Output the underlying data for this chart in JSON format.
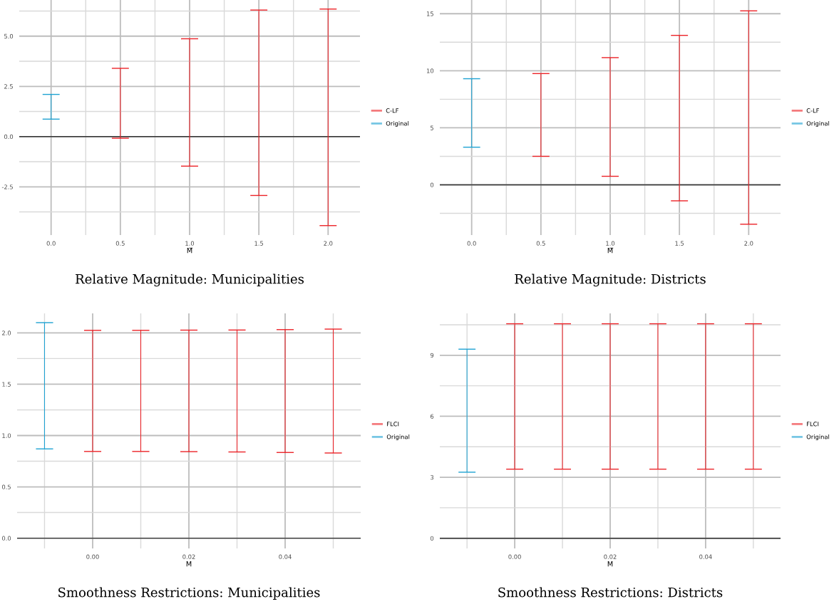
{
  "chart_data": [
    {
      "type": "bar",
      "title": "Relative Magnitude: Municipalities",
      "xlabel": "M̅",
      "xlim": [
        -0.23,
        2.23
      ],
      "xticks": [
        {
          "value": 0,
          "label": "0.0"
        },
        0.5,
        {
          "value": 1,
          "label": "1.0"
        },
        1.5,
        {
          "value": 2,
          "label": "2.0"
        }
      ],
      "ylim": [
        -4.9,
        6.8
      ],
      "yticks": [
        {
          "value": -2.5,
          "label": "-2.5"
        },
        {
          "value": 0,
          "label": "0.0"
        },
        2.5,
        {
          "value": 5,
          "label": "5.0"
        }
      ],
      "grid": true,
      "legend": "right",
      "ref_lines": [
        {
          "axis": "y",
          "value": 0,
          "color": "#333333"
        }
      ],
      "series": [
        {
          "name": "C-LF",
          "color": "#ec2227",
          "x": [
            0.5,
            1.0,
            1.5,
            2.0
          ],
          "base": [
            -0.08,
            -1.47,
            -2.93,
            -4.43
          ],
          "values": [
            3.48,
            6.34,
            9.23,
            10.78
          ]
        },
        {
          "name": "Original",
          "color": "#1ea2d2",
          "x": [
            0.0
          ],
          "base": [
            0.87
          ],
          "values": [
            1.23
          ]
        }
      ]
    },
    {
      "type": "bar",
      "title": "Relative Magnitude: Districts",
      "xlabel": "M̅",
      "xlim": [
        -0.23,
        2.23
      ],
      "xticks": [
        {
          "value": 0,
          "label": "0.0"
        },
        0.5,
        {
          "value": 1,
          "label": "1.0"
        },
        1.5,
        {
          "value": 2,
          "label": "2.0"
        }
      ],
      "ylim": [
        -4.4,
        16.2
      ],
      "yticks": [
        0,
        5,
        10,
        15
      ],
      "grid": true,
      "legend": "right",
      "ref_lines": [
        {
          "axis": "y",
          "value": 0,
          "color": "#333333"
        }
      ],
      "series": [
        {
          "name": "C-LF",
          "color": "#ec2227",
          "x": [
            0.5,
            1.0,
            1.5,
            2.0
          ],
          "base": [
            2.5,
            0.75,
            -1.4,
            -3.45
          ],
          "values": [
            7.25,
            10.4,
            14.5,
            18.7
          ]
        },
        {
          "name": "Original",
          "color": "#1ea2d2",
          "x": [
            0.0
          ],
          "base": [
            3.3
          ],
          "values": [
            6.0
          ]
        }
      ]
    },
    {
      "type": "bar",
      "title": "Smoothness Restrictions: Municipalities",
      "xlabel": "M",
      "xlim": [
        -0.0157,
        0.0557
      ],
      "xticks": [
        {
          "value": 0,
          "label": "0.00"
        },
        0.02,
        0.04
      ],
      "ylim": [
        -0.1,
        2.19
      ],
      "yticks": [
        {
          "value": 0,
          "label": "0.0"
        },
        0.5,
        {
          "value": 1,
          "label": "1.0"
        },
        1.5,
        {
          "value": 2,
          "label": "2.0"
        }
      ],
      "grid": true,
      "legend": "right",
      "ref_lines": [
        {
          "axis": "y",
          "value": 0,
          "color": "#333333"
        }
      ],
      "series": [
        {
          "name": "FLCI",
          "color": "#ec2227",
          "x": [
            0.0,
            0.01,
            0.02,
            0.03,
            0.04,
            0.05
          ],
          "base": [
            0.845,
            0.845,
            0.843,
            0.84,
            0.835,
            0.83
          ],
          "values": [
            1.18,
            1.18,
            1.184,
            1.188,
            1.197,
            1.207
          ]
        },
        {
          "name": "Original",
          "color": "#1ea2d2",
          "x": [
            -0.01
          ],
          "base": [
            0.87
          ],
          "values": [
            1.23
          ]
        }
      ]
    },
    {
      "type": "bar",
      "title": "Smoothness Restrictions: Districts",
      "xlabel": "M",
      "xlim": [
        -0.0157,
        0.0557
      ],
      "xticks": [
        {
          "value": 0,
          "label": "0.00"
        },
        0.02,
        0.04
      ],
      "ylim": [
        -0.5,
        11.06
      ],
      "yticks": [
        0,
        3,
        6,
        9
      ],
      "grid": true,
      "legend": "right",
      "ref_lines": [
        {
          "axis": "y",
          "value": 0,
          "color": "#333333"
        }
      ],
      "series": [
        {
          "name": "FLCI",
          "color": "#ec2227",
          "x": [
            0.0,
            0.01,
            0.02,
            0.03,
            0.04,
            0.05
          ],
          "base": [
            3.4,
            3.4,
            3.4,
            3.4,
            3.4,
            3.4
          ],
          "values": [
            7.15,
            7.15,
            7.15,
            7.15,
            7.15,
            7.15
          ]
        },
        {
          "name": "Original",
          "color": "#1ea2d2",
          "x": [
            -0.01
          ],
          "base": [
            3.25
          ],
          "values": [
            6.05
          ]
        }
      ]
    }
  ]
}
